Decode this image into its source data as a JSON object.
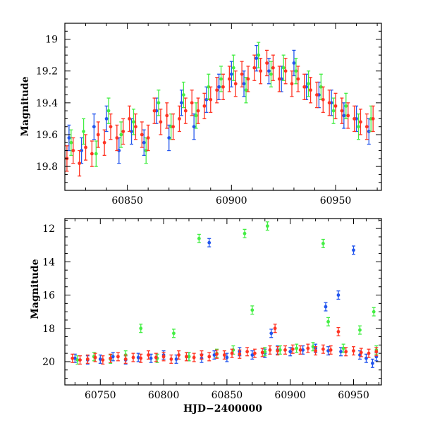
{
  "chart_data": [
    {
      "type": "scatter",
      "panel": "top",
      "xlabel": "",
      "ylabel": "Magnitude",
      "xlim": [
        60820,
        60972
      ],
      "ylim": [
        19.95,
        18.9
      ],
      "y_inverted": true,
      "xticks_labeled": [
        60850,
        60900,
        60950
      ],
      "yticks_labeled": [
        19.0,
        19.2,
        19.4,
        19.6,
        19.8
      ],
      "y_tick_labels": [
        "19",
        "19.2",
        "19.4",
        "19.6",
        "19.8"
      ],
      "grid": false,
      "series": [
        {
          "color": "#2255ee",
          "x": [
            60822,
            60828,
            60834,
            60840,
            60846,
            60852,
            60858,
            60864,
            60870,
            60876,
            60882,
            60888,
            60894,
            60900,
            60906,
            60912,
            60918,
            60924,
            60930,
            60936,
            60942,
            60948,
            60954,
            60960,
            60966
          ],
          "y": [
            19.62,
            19.7,
            19.55,
            19.5,
            19.7,
            19.58,
            19.65,
            19.45,
            19.62,
            19.4,
            19.55,
            19.38,
            19.3,
            19.22,
            19.28,
            19.12,
            19.2,
            19.25,
            19.15,
            19.3,
            19.35,
            19.4,
            19.48,
            19.5,
            19.58
          ]
        },
        {
          "color": "#44ee44",
          "x": [
            60823,
            60829,
            60835,
            60841,
            60847,
            60853,
            60859,
            60865,
            60871,
            60877,
            60883,
            60889,
            60895,
            60901,
            60907,
            60913,
            60919,
            60925,
            60931,
            60937,
            60943,
            60949,
            60955,
            60961,
            60967
          ],
          "y": [
            19.65,
            19.58,
            19.72,
            19.45,
            19.6,
            19.52,
            19.7,
            19.4,
            19.55,
            19.35,
            19.48,
            19.3,
            19.25,
            19.18,
            19.32,
            19.1,
            19.22,
            19.18,
            19.2,
            19.28,
            19.3,
            19.45,
            19.42,
            19.55,
            19.5
          ]
        },
        {
          "color": "#ff3322",
          "x": [
            60821,
            60824,
            60827,
            60830,
            60833,
            60836,
            60839,
            60842,
            60845,
            60848,
            60851,
            60854,
            60857,
            60860,
            60863,
            60866,
            60869,
            60872,
            60875,
            60878,
            60881,
            60884,
            60887,
            60890,
            60893,
            60896,
            60899,
            60902,
            60905,
            60908,
            60911,
            60914,
            60917,
            60920,
            60923,
            60926,
            60929,
            60932,
            60935,
            60938,
            60941,
            60944,
            60947,
            60950,
            60953,
            60956,
            60959,
            60962,
            60965,
            60968
          ],
          "y": [
            19.75,
            19.7,
            19.78,
            19.68,
            19.72,
            19.6,
            19.65,
            19.55,
            19.62,
            19.58,
            19.5,
            19.55,
            19.6,
            19.62,
            19.45,
            19.52,
            19.48,
            19.55,
            19.5,
            19.45,
            19.4,
            19.45,
            19.42,
            19.38,
            19.32,
            19.3,
            19.25,
            19.28,
            19.22,
            19.25,
            19.18,
            19.2,
            19.15,
            19.18,
            19.25,
            19.2,
            19.28,
            19.25,
            19.3,
            19.32,
            19.35,
            19.38,
            19.4,
            19.42,
            19.45,
            19.48,
            19.5,
            19.52,
            19.55,
            19.5
          ]
        }
      ]
    },
    {
      "type": "scatter",
      "panel": "bottom",
      "xlabel": "HJD−2400000",
      "ylabel": "Magnitude",
      "xlim": [
        60722,
        60972
      ],
      "ylim": [
        21.4,
        11.4
      ],
      "y_inverted": true,
      "xticks_labeled": [
        60750,
        60800,
        60850,
        60900,
        60950
      ],
      "yticks_labeled": [
        12,
        14,
        16,
        18,
        20
      ],
      "grid": false,
      "series": [
        {
          "color": "#2255ee",
          "x": [
            60730,
            60740,
            60750,
            60760,
            60770,
            60780,
            60790,
            60800,
            60810,
            60820,
            60830,
            60836,
            60840,
            60850,
            60860,
            60870,
            60880,
            60885,
            60890,
            60900,
            60910,
            60920,
            60928,
            60930,
            60938,
            60940,
            60950,
            60955,
            60960,
            60965,
            60968
          ],
          "y": [
            19.8,
            19.9,
            19.85,
            19.7,
            19.9,
            19.75,
            19.8,
            19.6,
            19.85,
            19.7,
            19.8,
            12.85,
            19.6,
            19.75,
            19.4,
            19.6,
            19.5,
            18.3,
            19.3,
            19.4,
            19.3,
            19.2,
            16.7,
            19.35,
            16.0,
            19.4,
            13.3,
            19.6,
            19.8,
            20.1,
            19.7
          ]
        },
        {
          "color": "#44ee44",
          "x": [
            60732,
            60745,
            60758,
            60770,
            60782,
            60795,
            60808,
            60820,
            60828,
            60842,
            60855,
            60864,
            60870,
            60880,
            60882,
            60892,
            60905,
            60918,
            60926,
            60930,
            60942,
            60955,
            60966,
            60968
          ],
          "y": [
            19.9,
            19.7,
            19.85,
            19.6,
            18.0,
            19.8,
            18.3,
            19.7,
            12.6,
            19.5,
            19.3,
            12.3,
            16.9,
            19.4,
            11.85,
            19.3,
            19.2,
            19.1,
            12.9,
            17.6,
            19.2,
            18.1,
            17.0,
            19.3
          ]
        },
        {
          "color": "#ff3322",
          "x": [
            60728,
            60734,
            60740,
            60746,
            60752,
            60758,
            60764,
            60770,
            60776,
            60782,
            60788,
            60794,
            60800,
            60806,
            60812,
            60818,
            60824,
            60830,
            60836,
            60842,
            60848,
            60854,
            60860,
            60866,
            60872,
            60878,
            60884,
            60888,
            60890,
            60896,
            60902,
            60908,
            60914,
            60920,
            60926,
            60932,
            60938,
            60944,
            60950,
            60956,
            60962,
            60968
          ],
          "y": [
            19.8,
            19.9,
            19.85,
            19.75,
            19.9,
            19.8,
            19.7,
            19.85,
            19.75,
            19.8,
            19.6,
            19.75,
            19.7,
            19.85,
            19.6,
            19.7,
            19.75,
            19.6,
            19.7,
            19.55,
            19.6,
            19.5,
            19.55,
            19.4,
            19.5,
            19.45,
            19.3,
            18.0,
            19.35,
            19.3,
            19.25,
            19.3,
            19.2,
            19.35,
            19.25,
            19.3,
            18.2,
            19.4,
            19.35,
            19.45,
            19.5,
            19.4
          ]
        }
      ]
    }
  ]
}
